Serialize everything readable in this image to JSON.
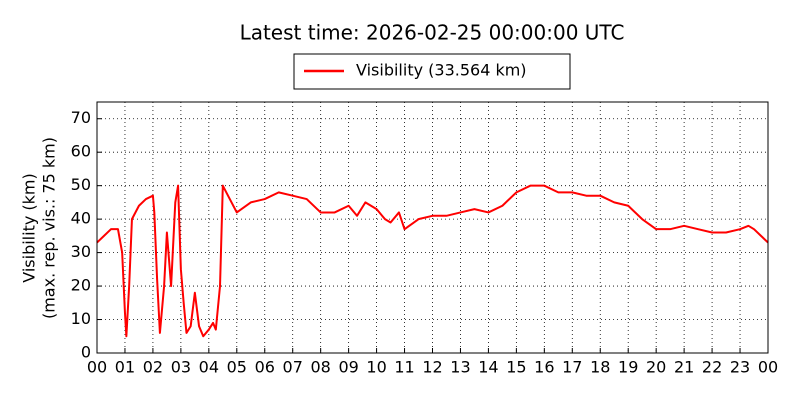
{
  "chart_data": {
    "type": "line",
    "title": "Latest time: 2026-02-25 00:00:00 UTC",
    "y_label": [
      "Visibility (km)",
      "(max. rep. vis.: 75 km)"
    ],
    "legend": "top",
    "grid": true,
    "xlim": [
      0,
      24
    ],
    "xticks": [
      {
        "value": 0,
        "label": "00"
      },
      {
        "value": 1,
        "label": "01"
      },
      {
        "value": 2,
        "label": "02"
      },
      {
        "value": 3,
        "label": "03"
      },
      {
        "value": 4,
        "label": "04"
      },
      {
        "value": 5,
        "label": "05"
      },
      {
        "value": 6,
        "label": "06"
      },
      {
        "value": 7,
        "label": "07"
      },
      {
        "value": 8,
        "label": "08"
      },
      {
        "value": 9,
        "label": "09"
      },
      {
        "value": 10,
        "label": "10"
      },
      {
        "value": 11,
        "label": "11"
      },
      {
        "value": 12,
        "label": "12"
      },
      {
        "value": 13,
        "label": "13"
      },
      {
        "value": 14,
        "label": "14"
      },
      {
        "value": 15,
        "label": "15"
      },
      {
        "value": 16,
        "label": "16"
      },
      {
        "value": 17,
        "label": "17"
      },
      {
        "value": 18,
        "label": "18"
      },
      {
        "value": 19,
        "label": "19"
      },
      {
        "value": 20,
        "label": "20"
      },
      {
        "value": 21,
        "label": "21"
      },
      {
        "value": 22,
        "label": "22"
      },
      {
        "value": 23,
        "label": "23"
      },
      {
        "value": 24,
        "label": "00"
      }
    ],
    "ylim": [
      0,
      75
    ],
    "yticks": [
      0,
      10,
      20,
      30,
      40,
      50,
      60,
      70
    ],
    "x": [
      0,
      0.25,
      0.5,
      0.75,
      0.9,
      1.0,
      1.05,
      1.15,
      1.25,
      1.5,
      1.75,
      2.0,
      2.05,
      2.15,
      2.25,
      2.4,
      2.5,
      2.65,
      2.8,
      2.9,
      3.0,
      3.1,
      3.2,
      3.35,
      3.5,
      3.65,
      3.8,
      4.0,
      4.15,
      4.25,
      4.4,
      4.5,
      4.75,
      5.0,
      5.5,
      6.0,
      6.5,
      7.0,
      7.5,
      8.0,
      8.5,
      9.0,
      9.3,
      9.6,
      10.0,
      10.3,
      10.5,
      10.8,
      11.0,
      11.5,
      12.0,
      12.5,
      13.0,
      13.5,
      14.0,
      14.5,
      15.0,
      15.5,
      16.0,
      16.5,
      17.0,
      17.5,
      18.0,
      18.5,
      19.0,
      19.5,
      20.0,
      20.5,
      21.0,
      21.5,
      22.0,
      22.5,
      23.0,
      23.3,
      23.5,
      23.75,
      24.0
    ],
    "series": [
      {
        "name": "Visibility (33.564 km)",
        "color": "#ff0000",
        "values": [
          33,
          35,
          37,
          37,
          30,
          12,
          5,
          20,
          40,
          44,
          46,
          47,
          42,
          22,
          6,
          20,
          36,
          20,
          45,
          50,
          25,
          15,
          6,
          8,
          18,
          8,
          5,
          7,
          9,
          7,
          20,
          50,
          46,
          42,
          45,
          46,
          48,
          47,
          46,
          42,
          42,
          44,
          41,
          45,
          43,
          40,
          39,
          42,
          37,
          40,
          41,
          41,
          42,
          43,
          42,
          44,
          48,
          50,
          50,
          48,
          48,
          47,
          47,
          45,
          44,
          40,
          37,
          37,
          38,
          37,
          36,
          36,
          37,
          38,
          37,
          35,
          33
        ]
      }
    ]
  }
}
